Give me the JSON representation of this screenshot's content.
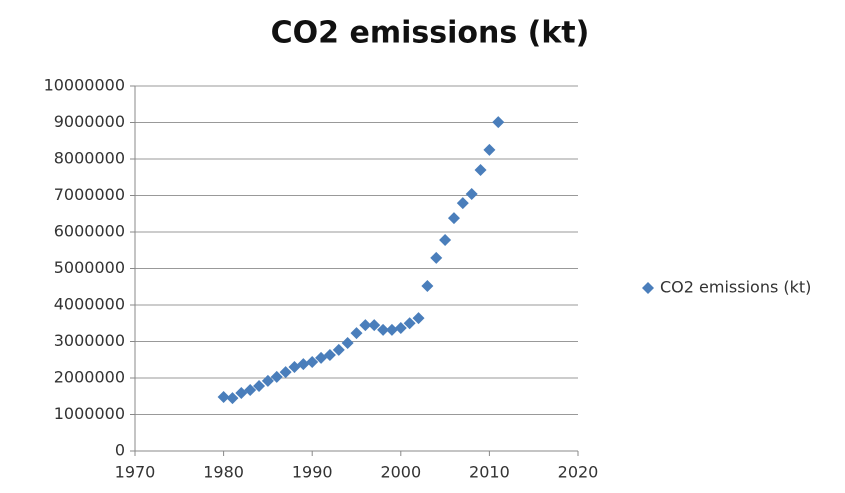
{
  "chart_data": {
    "type": "scatter",
    "title": "CO2 emissions (kt)",
    "series": [
      {
        "name": "CO2 emissions (kt)",
        "color": "#4a7ebb",
        "x": [
          1980,
          1981,
          1982,
          1983,
          1984,
          1985,
          1986,
          1987,
          1988,
          1989,
          1990,
          1991,
          1992,
          1993,
          1994,
          1995,
          1996,
          1997,
          1998,
          1999,
          2000,
          2001,
          2002,
          2003,
          2004,
          2005,
          2006,
          2007,
          2008,
          2009,
          2010,
          2011
        ],
        "values": [
          1480000,
          1450000,
          1590000,
          1670000,
          1780000,
          1920000,
          2030000,
          2160000,
          2300000,
          2380000,
          2440000,
          2550000,
          2630000,
          2770000,
          2960000,
          3230000,
          3450000,
          3450000,
          3320000,
          3320000,
          3370000,
          3500000,
          3640000,
          4520000,
          5290000,
          5780000,
          6380000,
          6790000,
          7040000,
          7700000,
          8250000,
          9010000
        ]
      }
    ],
    "xlim": [
      1970,
      2020
    ],
    "xticks": [
      1970,
      1980,
      1990,
      2000,
      2010,
      2020
    ],
    "ylim": [
      0,
      10000000
    ],
    "yticks": [
      0,
      1000000,
      2000000,
      3000000,
      4000000,
      5000000,
      6000000,
      7000000,
      8000000,
      9000000,
      10000000
    ],
    "grid": true,
    "legend": "right"
  }
}
